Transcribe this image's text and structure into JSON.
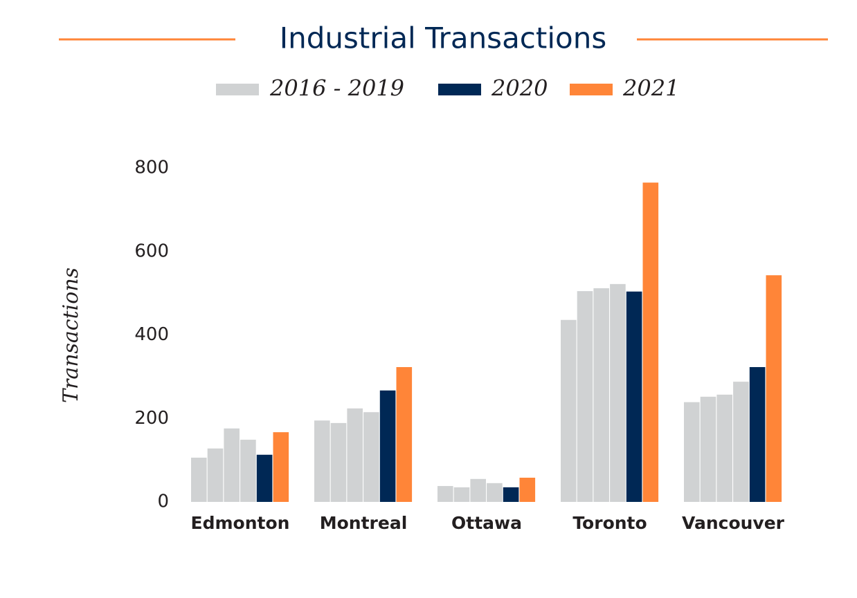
{
  "chart_data": {
    "type": "grouped_bar",
    "title": "Industrial Transactions",
    "y_label": "Transactions",
    "categories": [
      "Edmonton",
      "Montreal",
      "Ottawa",
      "Toronto",
      "Vancouver"
    ],
    "series": [
      {
        "name": "2016 - 2019",
        "color": "#d0d2d3",
        "values": [
          [
            106,
            128,
            176,
            149
          ],
          [
            195,
            189,
            224,
            215
          ],
          [
            38,
            35,
            55,
            45
          ],
          [
            436,
            505,
            512,
            522
          ],
          [
            239,
            252,
            257,
            288
          ]
        ]
      },
      {
        "name": "2020",
        "color": "#002855",
        "values": [
          113,
          267,
          35,
          504,
          323
        ]
      },
      {
        "name": "2021",
        "color": "#ff8538",
        "values": [
          167,
          323,
          58,
          765,
          543
        ]
      }
    ],
    "ylim": [
      0,
      800
    ],
    "yticks": [
      0,
      200,
      400,
      600,
      800
    ],
    "grid": false
  }
}
